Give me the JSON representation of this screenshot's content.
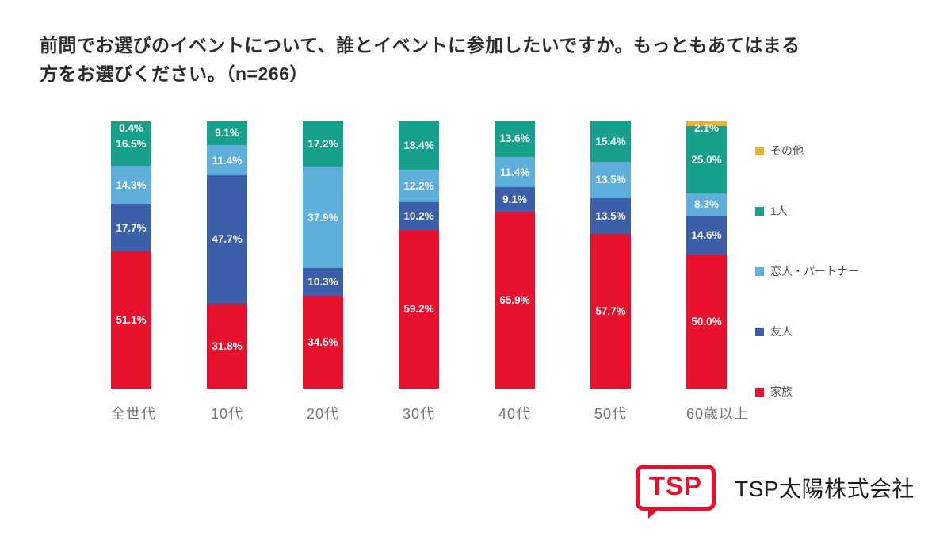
{
  "title": {
    "line1": "前問でお選びのイベントについて、誰とイベントに参加したいですか。もっともあてはまる",
    "line2": "方をお選びください。（n=266）"
  },
  "chart_data": {
    "type": "bar",
    "subtype": "stacked-100-percent-vertical",
    "title": "前問でお選びのイベントについて、誰とイベントに参加したいですか。もっともあてはまる方をお選びください。（n=266）",
    "n": 266,
    "categories": [
      "全世代",
      "10代",
      "20代",
      "30代",
      "40代",
      "50代",
      "60歳以上"
    ],
    "series": [
      {
        "name": "その他",
        "color": "#e9b23c",
        "values": [
          0.4,
          null,
          null,
          null,
          null,
          null,
          2.1
        ]
      },
      {
        "name": "1人",
        "color": "#17a18d",
        "values": [
          16.5,
          9.1,
          17.2,
          18.4,
          13.6,
          15.4,
          25.0
        ]
      },
      {
        "name": "恋人・パートナー",
        "color": "#5fafdd",
        "values": [
          14.3,
          11.4,
          37.9,
          12.2,
          11.4,
          13.5,
          8.3
        ]
      },
      {
        "name": "友人",
        "color": "#3c5fa9",
        "values": [
          17.7,
          47.7,
          10.3,
          10.2,
          9.1,
          13.5,
          14.6
        ]
      },
      {
        "name": "家族",
        "color": "#e8112d",
        "values": [
          51.1,
          31.8,
          34.5,
          59.2,
          65.9,
          57.7,
          50.0
        ]
      }
    ],
    "value_suffix": "%",
    "value_label_color": "#ffffff",
    "ylim": [
      0,
      100
    ],
    "grid": false,
    "legend_position": "right"
  },
  "footer": {
    "logo_text": "TSP",
    "company": "TSP太陽株式会社"
  }
}
